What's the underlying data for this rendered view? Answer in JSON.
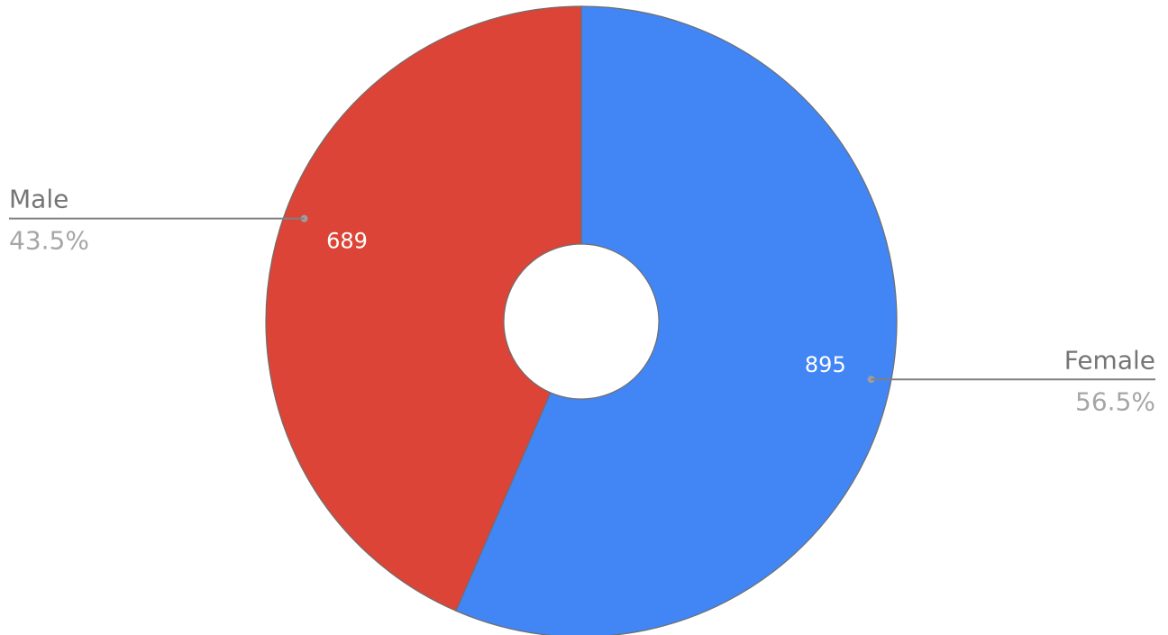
{
  "chart_data": {
    "type": "pie",
    "donut": true,
    "slices": [
      {
        "label": "Female",
        "value": 895,
        "percent": "56.5%",
        "color": "#4285f4"
      },
      {
        "label": "Male",
        "value": 689,
        "percent": "43.5%",
        "color": "#db4437"
      }
    ],
    "legend": "none",
    "labels": {
      "value_color": "#ffffff",
      "category_color": "#757575",
      "percent_color": "#a6a6a6"
    }
  }
}
